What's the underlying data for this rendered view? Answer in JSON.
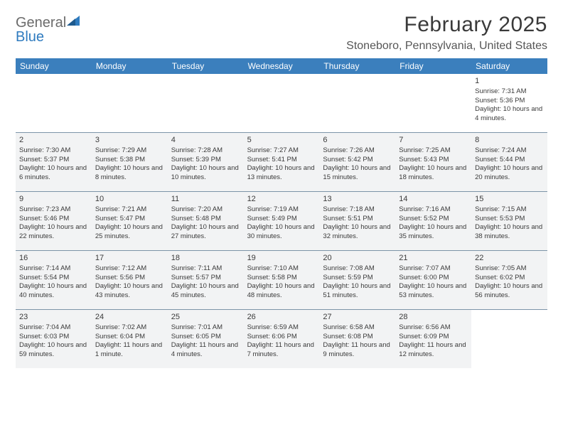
{
  "brand": {
    "part1": "General",
    "part2": "Blue"
  },
  "title": "February 2025",
  "location": "Stoneboro, Pennsylvania, United States",
  "colors": {
    "header_bg": "#3b7fbd",
    "header_fg": "#ffffff",
    "past_bg": "#f2f3f4",
    "rule": "#7c94a8",
    "logo_general": "#6b6b6b",
    "logo_blue": "#2f7bbf"
  },
  "weekdays": [
    "Sunday",
    "Monday",
    "Tuesday",
    "Wednesday",
    "Thursday",
    "Friday",
    "Saturday"
  ],
  "weeks": [
    [
      null,
      null,
      null,
      null,
      null,
      null,
      {
        "n": "1",
        "sr": "Sunrise: 7:31 AM",
        "ss": "Sunset: 5:36 PM",
        "dl": "Daylight: 10 hours and 4 minutes."
      }
    ],
    [
      {
        "n": "2",
        "sr": "Sunrise: 7:30 AM",
        "ss": "Sunset: 5:37 PM",
        "dl": "Daylight: 10 hours and 6 minutes."
      },
      {
        "n": "3",
        "sr": "Sunrise: 7:29 AM",
        "ss": "Sunset: 5:38 PM",
        "dl": "Daylight: 10 hours and 8 minutes."
      },
      {
        "n": "4",
        "sr": "Sunrise: 7:28 AM",
        "ss": "Sunset: 5:39 PM",
        "dl": "Daylight: 10 hours and 10 minutes."
      },
      {
        "n": "5",
        "sr": "Sunrise: 7:27 AM",
        "ss": "Sunset: 5:41 PM",
        "dl": "Daylight: 10 hours and 13 minutes."
      },
      {
        "n": "6",
        "sr": "Sunrise: 7:26 AM",
        "ss": "Sunset: 5:42 PM",
        "dl": "Daylight: 10 hours and 15 minutes."
      },
      {
        "n": "7",
        "sr": "Sunrise: 7:25 AM",
        "ss": "Sunset: 5:43 PM",
        "dl": "Daylight: 10 hours and 18 minutes."
      },
      {
        "n": "8",
        "sr": "Sunrise: 7:24 AM",
        "ss": "Sunset: 5:44 PM",
        "dl": "Daylight: 10 hours and 20 minutes."
      }
    ],
    [
      {
        "n": "9",
        "sr": "Sunrise: 7:23 AM",
        "ss": "Sunset: 5:46 PM",
        "dl": "Daylight: 10 hours and 22 minutes."
      },
      {
        "n": "10",
        "sr": "Sunrise: 7:21 AM",
        "ss": "Sunset: 5:47 PM",
        "dl": "Daylight: 10 hours and 25 minutes."
      },
      {
        "n": "11",
        "sr": "Sunrise: 7:20 AM",
        "ss": "Sunset: 5:48 PM",
        "dl": "Daylight: 10 hours and 27 minutes."
      },
      {
        "n": "12",
        "sr": "Sunrise: 7:19 AM",
        "ss": "Sunset: 5:49 PM",
        "dl": "Daylight: 10 hours and 30 minutes."
      },
      {
        "n": "13",
        "sr": "Sunrise: 7:18 AM",
        "ss": "Sunset: 5:51 PM",
        "dl": "Daylight: 10 hours and 32 minutes."
      },
      {
        "n": "14",
        "sr": "Sunrise: 7:16 AM",
        "ss": "Sunset: 5:52 PM",
        "dl": "Daylight: 10 hours and 35 minutes."
      },
      {
        "n": "15",
        "sr": "Sunrise: 7:15 AM",
        "ss": "Sunset: 5:53 PM",
        "dl": "Daylight: 10 hours and 38 minutes."
      }
    ],
    [
      {
        "n": "16",
        "sr": "Sunrise: 7:14 AM",
        "ss": "Sunset: 5:54 PM",
        "dl": "Daylight: 10 hours and 40 minutes."
      },
      {
        "n": "17",
        "sr": "Sunrise: 7:12 AM",
        "ss": "Sunset: 5:56 PM",
        "dl": "Daylight: 10 hours and 43 minutes."
      },
      {
        "n": "18",
        "sr": "Sunrise: 7:11 AM",
        "ss": "Sunset: 5:57 PM",
        "dl": "Daylight: 10 hours and 45 minutes."
      },
      {
        "n": "19",
        "sr": "Sunrise: 7:10 AM",
        "ss": "Sunset: 5:58 PM",
        "dl": "Daylight: 10 hours and 48 minutes."
      },
      {
        "n": "20",
        "sr": "Sunrise: 7:08 AM",
        "ss": "Sunset: 5:59 PM",
        "dl": "Daylight: 10 hours and 51 minutes."
      },
      {
        "n": "21",
        "sr": "Sunrise: 7:07 AM",
        "ss": "Sunset: 6:00 PM",
        "dl": "Daylight: 10 hours and 53 minutes."
      },
      {
        "n": "22",
        "sr": "Sunrise: 7:05 AM",
        "ss": "Sunset: 6:02 PM",
        "dl": "Daylight: 10 hours and 56 minutes."
      }
    ],
    [
      {
        "n": "23",
        "sr": "Sunrise: 7:04 AM",
        "ss": "Sunset: 6:03 PM",
        "dl": "Daylight: 10 hours and 59 minutes."
      },
      {
        "n": "24",
        "sr": "Sunrise: 7:02 AM",
        "ss": "Sunset: 6:04 PM",
        "dl": "Daylight: 11 hours and 1 minute."
      },
      {
        "n": "25",
        "sr": "Sunrise: 7:01 AM",
        "ss": "Sunset: 6:05 PM",
        "dl": "Daylight: 11 hours and 4 minutes."
      },
      {
        "n": "26",
        "sr": "Sunrise: 6:59 AM",
        "ss": "Sunset: 6:06 PM",
        "dl": "Daylight: 11 hours and 7 minutes."
      },
      {
        "n": "27",
        "sr": "Sunrise: 6:58 AM",
        "ss": "Sunset: 6:08 PM",
        "dl": "Daylight: 11 hours and 9 minutes."
      },
      {
        "n": "28",
        "sr": "Sunrise: 6:56 AM",
        "ss": "Sunset: 6:09 PM",
        "dl": "Daylight: 11 hours and 12 minutes."
      },
      null
    ]
  ],
  "past_weeks": [
    1,
    2,
    3,
    4
  ]
}
